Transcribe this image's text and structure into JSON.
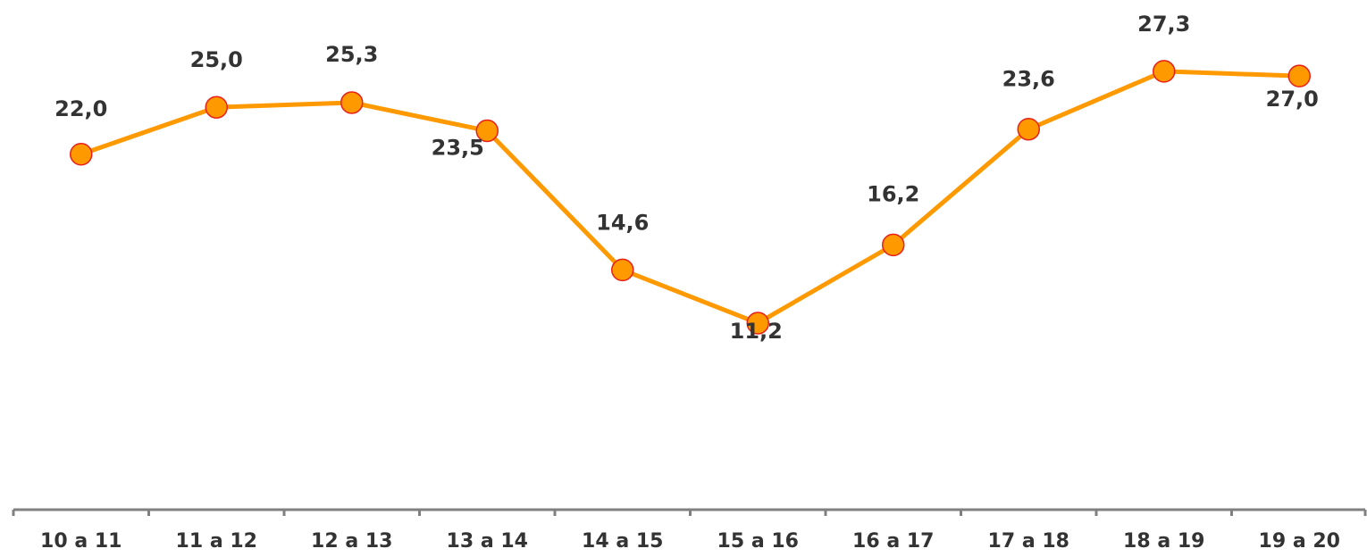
{
  "chart_data": {
    "type": "line",
    "categories": [
      "10 a 11",
      "11 a 12",
      "12 a 13",
      "13 a 14",
      "14 a 15",
      "15 a 16",
      "16 a 17",
      "17 a 18",
      "18 a 19",
      "19 a 20"
    ],
    "values": [
      22.0,
      25.0,
      25.3,
      23.5,
      14.6,
      11.2,
      16.2,
      23.6,
      27.3,
      27.0
    ],
    "value_labels": [
      "22,0",
      "25,0",
      "25,3",
      "23,5",
      "14,6",
      "11,2",
      "16,2",
      "23,6",
      "27,3",
      "27,0"
    ],
    "color": "#ff9900",
    "marker_edge_color": "#e8201a"
  }
}
